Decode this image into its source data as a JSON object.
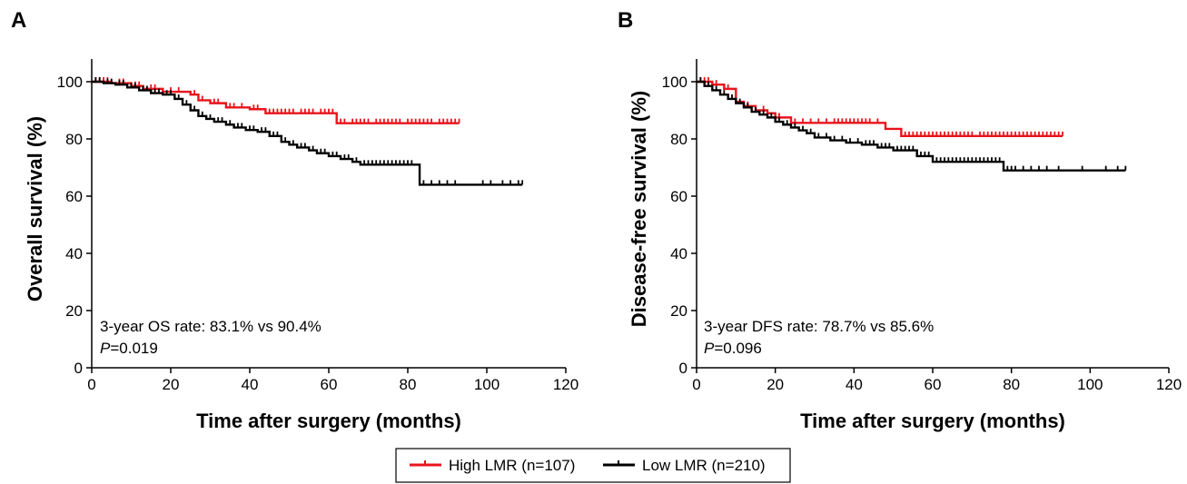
{
  "legend": {
    "items": [
      {
        "label": "High LMR (n=107)",
        "color": "#e8141b"
      },
      {
        "label": "Low LMR (n=210)",
        "color": "#000000"
      }
    ]
  },
  "chart_data": [
    {
      "type": "line",
      "panel": "A",
      "xlabel": "Time after surgery (months)",
      "ylabel": "Overall survival (%)",
      "xlim": [
        0,
        120
      ],
      "ylim": [
        0,
        100
      ],
      "xticks": [
        0,
        20,
        40,
        60,
        80,
        100,
        120
      ],
      "yticks": [
        0,
        20,
        40,
        60,
        80,
        100
      ],
      "annotation": {
        "line1": "3-year OS rate: 83.1% vs 90.4%",
        "p_label": "P",
        "p_value": "=0.019"
      },
      "series": [
        {
          "name": "High LMR (n=107)",
          "color": "#e8141b",
          "x": [
            0,
            5,
            10,
            13,
            18,
            25,
            27,
            30,
            34,
            40,
            44,
            57,
            62,
            93
          ],
          "y": [
            100,
            99.5,
            98.5,
            97.5,
            96.5,
            95.5,
            93.5,
            92.5,
            91,
            90.4,
            89,
            89,
            85.5,
            85.5
          ],
          "censored_x": [
            1,
            2,
            3,
            4,
            7,
            8,
            11,
            12,
            15,
            16,
            20,
            22,
            26,
            28,
            31,
            32,
            35,
            36,
            38,
            41,
            42,
            45,
            46,
            47,
            48,
            49,
            50,
            51,
            53,
            54,
            55,
            56,
            58,
            59,
            60,
            61,
            63,
            64,
            66,
            67,
            68,
            69,
            70,
            72,
            73,
            74,
            75,
            76,
            77,
            78,
            80,
            81,
            82,
            83,
            84,
            85,
            86,
            88,
            89,
            90,
            91,
            92,
            93
          ]
        },
        {
          "name": "Low LMR (n=210)",
          "color": "#000000",
          "x": [
            0,
            3,
            6,
            9,
            12,
            15,
            18,
            21,
            23,
            25,
            27,
            29,
            31,
            34,
            36,
            39,
            42,
            45,
            48,
            50,
            52,
            55,
            57,
            60,
            63,
            66,
            68,
            83,
            109
          ],
          "y": [
            100,
            99.5,
            99,
            98,
            97,
            96,
            95.5,
            94,
            92,
            90,
            88,
            87,
            86,
            85,
            84,
            83.1,
            82.5,
            81,
            79,
            78,
            77,
            76,
            75,
            74,
            73,
            72,
            71,
            64,
            64
          ],
          "censored_x": [
            1,
            2,
            4,
            5,
            7,
            8,
            10,
            11,
            13,
            14,
            16,
            17,
            19,
            20,
            22,
            24,
            26,
            28,
            30,
            32,
            33,
            35,
            37,
            38,
            40,
            41,
            43,
            44,
            46,
            47,
            49,
            51,
            53,
            54,
            56,
            58,
            59,
            61,
            62,
            64,
            65,
            67,
            69,
            70,
            71,
            72,
            73,
            74,
            75,
            76,
            77,
            78,
            79,
            80,
            81,
            84,
            86,
            88,
            90,
            92,
            99,
            101,
            104,
            106,
            108,
            109
          ]
        }
      ]
    },
    {
      "type": "line",
      "panel": "B",
      "xlabel": "Time after surgery (months)",
      "ylabel": "Disease-free survival (%)",
      "xlim": [
        0,
        120
      ],
      "ylim": [
        0,
        100
      ],
      "xticks": [
        0,
        20,
        40,
        60,
        80,
        100,
        120
      ],
      "yticks": [
        0,
        20,
        40,
        60,
        80,
        100
      ],
      "annotation": {
        "line1": "3-year DFS rate: 78.7% vs 85.6%",
        "p_label": "P",
        "p_value": "=0.096"
      },
      "series": [
        {
          "name": "High LMR (n=107)",
          "color": "#e8141b",
          "x": [
            0,
            4,
            7,
            10,
            12,
            15,
            18,
            20,
            24,
            45,
            48,
            52,
            93
          ],
          "y": [
            100,
            99,
            97.5,
            93,
            91.5,
            90,
            89,
            87.5,
            85.6,
            85.6,
            83.5,
            81,
            81
          ],
          "censored_x": [
            1,
            2,
            3,
            5,
            8,
            13,
            17,
            21,
            25,
            27,
            29,
            31,
            33,
            35,
            36,
            37,
            38,
            39,
            40,
            41,
            42,
            43,
            44,
            46,
            53,
            54,
            55,
            56,
            57,
            58,
            59,
            60,
            61,
            62,
            63,
            64,
            65,
            66,
            67,
            68,
            69,
            70,
            72,
            73,
            74,
            75,
            76,
            77,
            78,
            79,
            80,
            81,
            82,
            83,
            84,
            85,
            86,
            87,
            88,
            89,
            90,
            91,
            92,
            93
          ]
        },
        {
          "name": "Low LMR (n=210)",
          "color": "#000000",
          "x": [
            0,
            2,
            4,
            6,
            8,
            10,
            12,
            14,
            16,
            18,
            20,
            22,
            24,
            26,
            28,
            30,
            34,
            38,
            42,
            46,
            50,
            56,
            60,
            78,
            109
          ],
          "y": [
            100,
            98.5,
            97,
            95.5,
            94,
            92.5,
            91,
            89.5,
            88.5,
            87.5,
            86,
            85,
            84,
            83,
            82,
            80.5,
            79.5,
            78.7,
            78,
            77,
            76,
            74,
            72,
            69,
            69
          ],
          "censored_x": [
            1,
            3,
            5,
            7,
            9,
            11,
            13,
            15,
            17,
            19,
            21,
            23,
            25,
            27,
            29,
            31,
            33,
            35,
            37,
            39,
            41,
            43,
            44,
            45,
            47,
            48,
            49,
            51,
            52,
            53,
            54,
            55,
            57,
            58,
            59,
            61,
            62,
            63,
            64,
            65,
            66,
            67,
            68,
            69,
            70,
            71,
            72,
            73,
            74,
            75,
            76,
            77,
            79,
            80,
            81,
            83,
            85,
            87,
            89,
            92,
            98,
            104,
            107,
            109
          ]
        }
      ]
    }
  ]
}
